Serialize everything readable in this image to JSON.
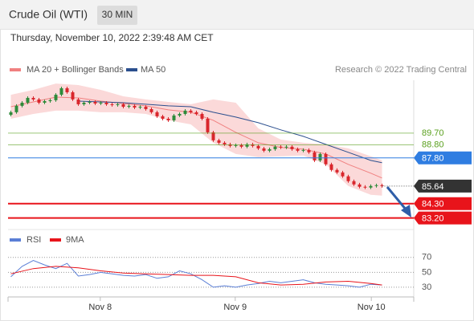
{
  "chart_data": {
    "type": "candlestick",
    "title": "Crude Oil (WTI)",
    "timeframe": "30 MIN",
    "subtitle": "Thursday, November 10, 2022 2:39:48 AM CET",
    "source": "Research © 2022 Trading Central",
    "up_color": "#2e8b3a",
    "down_color": "#d9262c",
    "candles": {
      "open": [
        91.1,
        91.3,
        91.79,
        92.03,
        92.4,
        92.28,
        92.03,
        92.15,
        92.22,
        92.64,
        93.14,
        92.83,
        92.28,
        91.91,
        92.03,
        92.09,
        91.97,
        92.03,
        91.91,
        91.85,
        91.91,
        91.72,
        91.79,
        91.66,
        91.72,
        91.54,
        91.3,
        90.99,
        90.8,
        90.68,
        91.05,
        91.17,
        91.42,
        91.3,
        91.17,
        90.8,
        89.76,
        89.15,
        88.96,
        88.84,
        88.72,
        88.78,
        88.66,
        88.84,
        88.72,
        88.53,
        88.35,
        88.47,
        88.66,
        88.6,
        88.66,
        88.47,
        88.35,
        88.41,
        88.23,
        87.61,
        88.1,
        87.31,
        86.88,
        86.69,
        86.39,
        86.02,
        85.77,
        85.59,
        85.53,
        85.65,
        85.71
      ],
      "high": [
        91.42,
        91.91,
        92.15,
        92.52,
        92.52,
        92.4,
        92.27,
        92.34,
        92.76,
        93.26,
        93.26,
        92.95,
        92.4,
        92.15,
        92.21,
        92.21,
        92.15,
        92.15,
        92.03,
        92.03,
        92.03,
        91.91,
        91.91,
        91.84,
        91.84,
        91.66,
        91.42,
        91.11,
        90.92,
        91.17,
        91.29,
        91.54,
        91.54,
        91.42,
        91.29,
        90.92,
        89.88,
        89.27,
        89.08,
        88.96,
        88.9,
        88.9,
        88.96,
        88.96,
        88.84,
        88.65,
        88.59,
        88.78,
        88.78,
        88.78,
        88.78,
        88.59,
        88.53,
        88.53,
        88.35,
        88.22,
        88.22,
        87.43,
        87.0,
        86.81,
        86.51,
        86.14,
        85.89,
        85.71,
        85.77,
        85.83,
        85.83
      ],
      "low": [
        90.98,
        91.18,
        91.67,
        91.91,
        92.16,
        91.91,
        91.91,
        92.03,
        92.1,
        92.52,
        92.71,
        92.16,
        91.79,
        91.79,
        91.91,
        91.85,
        91.85,
        91.79,
        91.73,
        91.73,
        91.6,
        91.6,
        91.54,
        91.54,
        91.42,
        91.18,
        90.87,
        90.68,
        90.56,
        90.56,
        90.93,
        91.05,
        91.18,
        91.05,
        90.68,
        89.64,
        89.03,
        88.84,
        88.72,
        88.6,
        88.6,
        88.54,
        88.54,
        88.6,
        88.41,
        88.23,
        88.23,
        88.35,
        88.48,
        88.48,
        88.35,
        88.23,
        88.23,
        88.11,
        87.49,
        87.49,
        87.19,
        86.76,
        86.57,
        86.27,
        85.9,
        85.65,
        85.47,
        85.41,
        85.41,
        85.53,
        85.52
      ],
      "close": [
        91.3,
        91.79,
        92.03,
        92.4,
        92.28,
        92.03,
        92.15,
        92.22,
        92.64,
        93.14,
        92.83,
        92.28,
        91.91,
        92.03,
        92.09,
        91.97,
        92.03,
        91.91,
        91.85,
        91.91,
        91.72,
        91.79,
        91.66,
        91.72,
        91.54,
        91.3,
        90.99,
        90.8,
        90.68,
        91.05,
        91.17,
        91.42,
        91.3,
        91.17,
        90.8,
        89.76,
        89.15,
        88.96,
        88.84,
        88.72,
        88.78,
        88.66,
        88.84,
        88.72,
        88.53,
        88.35,
        88.47,
        88.66,
        88.6,
        88.66,
        88.47,
        88.35,
        88.41,
        88.23,
        87.61,
        88.1,
        87.31,
        86.88,
        86.69,
        86.39,
        86.02,
        85.77,
        85.59,
        85.53,
        85.65,
        85.71,
        85.64
      ]
    },
    "overlays": [
      {
        "name": "MA 20 + Bollinger Bands",
        "color": "#f08080",
        "band_color": "#fbd9d9",
        "x": [
          0,
          4,
          8,
          12,
          16,
          20,
          24,
          28,
          32,
          36,
          40,
          44,
          48,
          52,
          56,
          60,
          64,
          66
        ],
        "values": [
          91.72,
          92.09,
          92.46,
          92.4,
          92.15,
          91.97,
          91.79,
          91.48,
          91.3,
          90.68,
          89.76,
          88.96,
          88.6,
          88.47,
          88.1,
          87.31,
          86.63,
          86.26
        ],
        "upper": [
          92.64,
          93.01,
          93.5,
          93.38,
          93.01,
          92.52,
          92.28,
          92.09,
          91.91,
          92.28,
          92.03,
          90.07,
          89.21,
          88.96,
          88.84,
          88.53,
          87.92,
          87.61
        ],
        "lower": [
          90.8,
          91.17,
          91.42,
          91.42,
          91.3,
          91.3,
          91.17,
          90.68,
          90.37,
          88.96,
          88.1,
          87.86,
          87.92,
          87.98,
          87.31,
          85.65,
          84.98,
          84.91
        ]
      },
      {
        "name": "MA 50",
        "color": "#2b4f8e",
        "x": [
          12,
          16,
          20,
          24,
          28,
          32,
          36,
          40,
          44,
          48,
          52,
          56,
          60,
          64,
          66
        ],
        "values": [
          92.15,
          92.09,
          92.03,
          91.91,
          91.79,
          91.72,
          91.3,
          90.93,
          90.5,
          89.95,
          89.45,
          88.84,
          88.23,
          87.61,
          87.43
        ]
      }
    ],
    "levels": [
      {
        "value": 89.7,
        "label": "89.70",
        "color": "#5aa01e",
        "tag": false
      },
      {
        "value": 88.8,
        "label": "88.80",
        "color": "#5aa01e",
        "tag": false
      },
      {
        "value": 87.8,
        "label": "87.80",
        "color": "#2f7de1",
        "tag": true
      },
      {
        "value": 85.64,
        "color": "#333333",
        "tag": true,
        "dotted": true
      },
      {
        "value": 84.3,
        "label": "84.30",
        "color": "#e8141b",
        "tag": true
      },
      {
        "value": 83.2,
        "label": "83.20",
        "color": "#e8141b",
        "tag": true
      }
    ],
    "xlim": [
      -0.5,
      71.5
    ],
    "xticks": [
      {
        "value": 15.9,
        "label": "Nov 8"
      },
      {
        "value": 39.9,
        "label": "Nov 9"
      },
      {
        "value": 64.1,
        "label": "Nov 10"
      }
    ],
    "ylim": [
      82.5,
      93.75
    ],
    "rsi": {
      "ylim": [
        17,
        87
      ],
      "yticks": [
        70,
        50,
        30
      ],
      "series": [
        {
          "name": "RSI",
          "color": "#5b7fd6",
          "x": [
            0,
            2,
            4,
            6,
            8,
            10,
            12,
            14,
            16,
            18,
            20,
            22,
            24,
            26,
            28,
            30,
            32,
            34,
            36,
            38,
            40,
            42,
            44,
            46,
            48,
            50,
            52,
            54,
            56,
            58,
            60,
            62,
            64,
            66
          ],
          "values": [
            44,
            58,
            66,
            60,
            55,
            62,
            45,
            47,
            50,
            48,
            46,
            45,
            47,
            42,
            44,
            52,
            48,
            40,
            30,
            32,
            30,
            33,
            35,
            38,
            36,
            38,
            40,
            36,
            34,
            33,
            32,
            30,
            34,
            33
          ]
        },
        {
          "name": "9MA",
          "color": "#e8141b",
          "x": [
            0,
            4,
            8,
            12,
            16,
            20,
            24,
            28,
            32,
            36,
            40,
            44,
            48,
            52,
            56,
            60,
            64,
            66
          ],
          "values": [
            48,
            55,
            58,
            56,
            52,
            49,
            48,
            47,
            46,
            46,
            44,
            36,
            33,
            34,
            37,
            38,
            35,
            33
          ]
        }
      ]
    }
  }
}
